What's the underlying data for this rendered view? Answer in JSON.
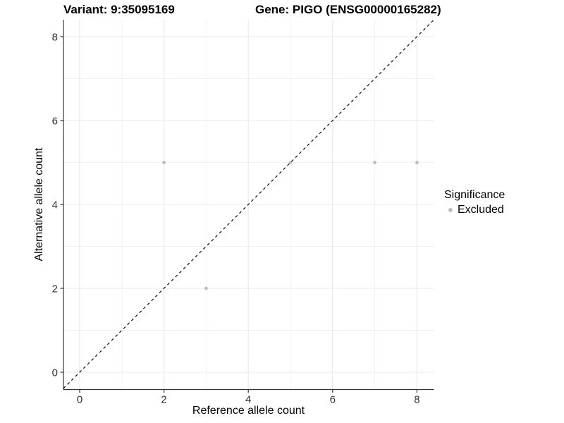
{
  "titles": {
    "left": "Variant: 9:35095169",
    "right": "Gene: PIGO (ENSG00000165282)"
  },
  "chart_data": {
    "type": "scatter",
    "title": "Variant: 9:35095169   Gene: PIGO (ENSG00000165282)",
    "xlabel": "Reference allele count",
    "ylabel": "Alternative allele count",
    "xlim": [
      -0.4,
      8.4
    ],
    "ylim": [
      -0.4,
      8.4
    ],
    "x_ticks": [
      0,
      2,
      4,
      6,
      8
    ],
    "y_ticks": [
      0,
      2,
      4,
      6,
      8
    ],
    "x_minor_ticks": [
      1,
      3,
      5,
      7
    ],
    "y_minor_ticks": [
      1,
      3,
      5,
      7
    ],
    "grid": "on",
    "series": [
      {
        "name": "Excluded",
        "color": "#bdbdbd",
        "points": [
          {
            "x": 2,
            "y": 5
          },
          {
            "x": 3,
            "y": 2
          },
          {
            "x": 5,
            "y": 5
          },
          {
            "x": 7,
            "y": 5
          },
          {
            "x": 8,
            "y": 5
          }
        ]
      }
    ],
    "reference_line": {
      "kind": "identity",
      "slope": 1,
      "intercept": 0,
      "style": "dashed",
      "color": "#1a1a1a"
    },
    "legend": {
      "title": "Significance",
      "position": "right",
      "items": [
        {
          "label": "Excluded",
          "color": "#bdbdbd"
        }
      ]
    },
    "colors": {
      "grid_major": "#e8e8e8",
      "grid_minor": "#f2f2f2",
      "axis_line": "#333333",
      "tick_label": "#333333",
      "point": "#bdbdbd"
    }
  }
}
